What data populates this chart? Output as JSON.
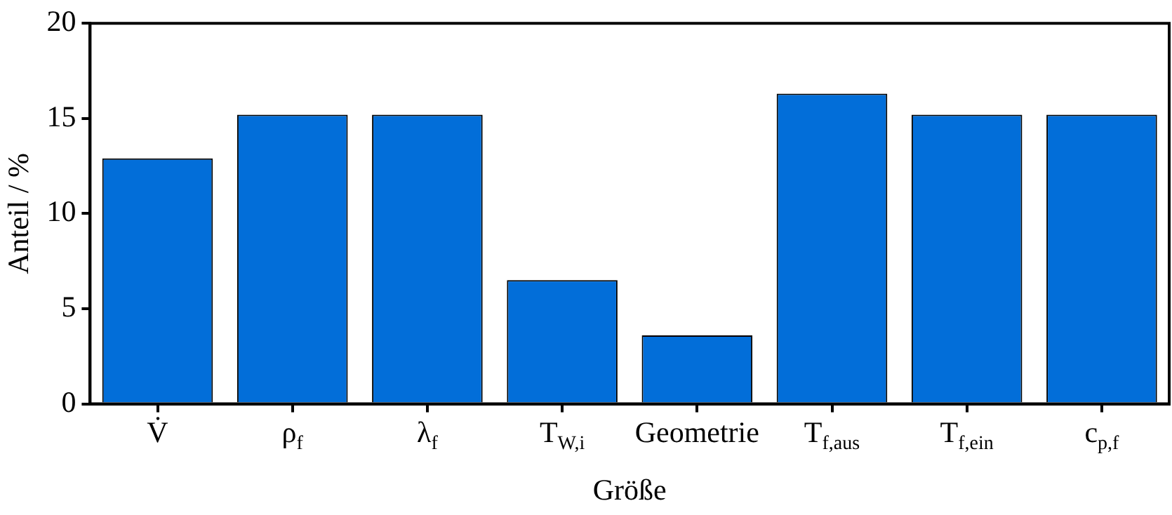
{
  "chart_data": {
    "type": "bar",
    "xlabel": "Größe",
    "ylabel": "Anteil / %",
    "categories": [
      "V̇",
      "ρ$_{f}$",
      "λ$_{f}$",
      "T$_{W,i}$",
      "Geometrie",
      "T$_{f,aus}$",
      "T$_{f,ein}$",
      "c$_{p,f}$"
    ],
    "values": [
      12.9,
      15.2,
      15.2,
      6.5,
      3.6,
      16.3,
      15.2,
      15.2
    ],
    "color": "#026ed9",
    "ylim": [
      0,
      20
    ],
    "yticks": [
      0,
      5,
      10,
      15,
      20
    ],
    "grid": false,
    "legend": false
  }
}
